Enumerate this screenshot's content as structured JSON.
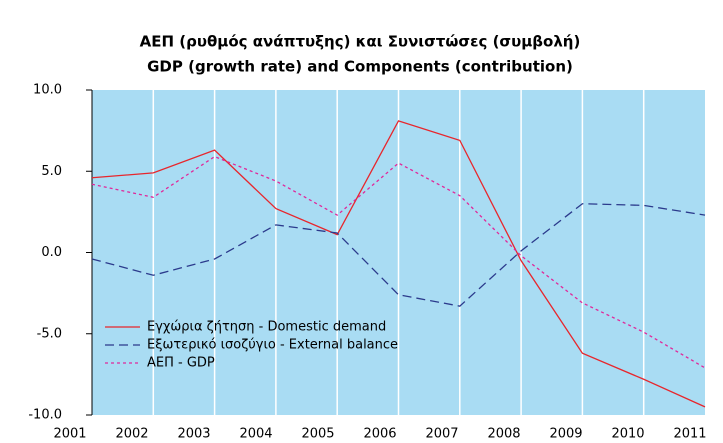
{
  "chart_data": {
    "type": "line",
    "title": "ΑΕΠ (ρυθμός ανάπτυξης) και Συνιστώσες (συμβολή)",
    "subtitle": "GDP (growth rate) and Components (contribution)",
    "categories": [
      "2001",
      "2002",
      "2003",
      "2004",
      "2005",
      "2006",
      "2007",
      "2008",
      "2009",
      "2010",
      "2011"
    ],
    "series": [
      {
        "name": "Εγχώρια ζήτηση - Domestic demand",
        "color": "#e8262c",
        "dash": "none",
        "values": [
          4.6,
          4.9,
          6.3,
          2.7,
          1.1,
          8.1,
          6.9,
          -0.5,
          -6.2,
          -7.8,
          -9.5
        ]
      },
      {
        "name": "Εξωτερικό ισοζύγιο - External balance",
        "color": "#2b3a8c",
        "dash": "9 5",
        "values": [
          -0.4,
          -1.4,
          -0.4,
          1.7,
          1.2,
          -2.6,
          -3.3,
          0.1,
          3.0,
          2.9,
          2.3
        ]
      },
      {
        "name": "ΑΕΠ - GDP",
        "color": "#e0289a",
        "dash": "3 3",
        "values": [
          4.2,
          3.4,
          5.9,
          4.4,
          2.3,
          5.5,
          3.5,
          -0.2,
          -3.1,
          -4.9,
          -7.1
        ]
      }
    ],
    "ylim": [
      -10,
      10
    ],
    "yticks": [
      {
        "value": 10,
        "label": "10.0"
      },
      {
        "value": 5,
        "label": "5.0"
      },
      {
        "value": 0,
        "label": "0.0"
      },
      {
        "value": -5,
        "label": "-5.0"
      },
      {
        "value": -10,
        "label": "-10.0"
      }
    ],
    "grid": true,
    "legend": "lower-left"
  }
}
